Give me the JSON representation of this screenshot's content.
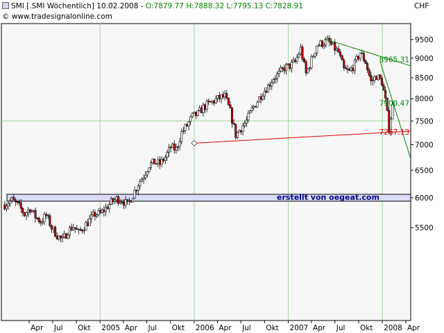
{
  "header": {
    "instrument": "SMI [.SMI Wöchentlich] 10.02.2008",
    "ohlc": "O:7879.77 H:7888.32 L:7795.13 C:7828.91",
    "source": "© www.tradesignalonline.com",
    "currency": "CHF",
    "credit": "erstellt von oegeat.com"
  },
  "colors": {
    "background": "#ffffff",
    "plot_background": "#f7f7f7",
    "grid": "#9fd49f",
    "up_candle": "#ffffff",
    "down_candle": "#cc0000",
    "trendline_green": "#008000",
    "trendline_red": "#dd0000",
    "support_zone": "#d8dcf6"
  },
  "chart_data": {
    "type": "candlestick",
    "y_scale": "log",
    "ylim": [
      4200,
      9950
    ],
    "xlim": [
      "2003-12-15",
      "2008-04-20"
    ],
    "yticks": [
      5500,
      6000,
      6500,
      7000,
      7500,
      8000,
      8500,
      9000,
      9500
    ],
    "ytick_labels": [
      "5500",
      "6000",
      "6500",
      "7000",
      "7500",
      "8000",
      "8500",
      "9000",
      "9500"
    ],
    "xticks": [
      {
        "date": "2004-04-01",
        "label": "Apr"
      },
      {
        "date": "2004-07-01",
        "label": "Jul"
      },
      {
        "date": "2004-10-01",
        "label": "Okt"
      },
      {
        "date": "2005-01-01",
        "label": "2005"
      },
      {
        "date": "2005-04-01",
        "label": "Apr"
      },
      {
        "date": "2005-07-01",
        "label": "Jul"
      },
      {
        "date": "2005-10-01",
        "label": "Okt"
      },
      {
        "date": "2006-01-01",
        "label": "2006"
      },
      {
        "date": "2006-04-01",
        "label": "Apr"
      },
      {
        "date": "2006-07-01",
        "label": "Jul"
      },
      {
        "date": "2006-10-01",
        "label": "Okt"
      },
      {
        "date": "2007-01-01",
        "label": "2007"
      },
      {
        "date": "2007-04-01",
        "label": "Apr"
      },
      {
        "date": "2007-07-01",
        "label": "Jul"
      },
      {
        "date": "2007-10-01",
        "label": "Okt"
      },
      {
        "date": "2008-01-01",
        "label": "2008"
      },
      {
        "date": "2008-04-01",
        "label": "Apr"
      }
    ],
    "grid": true,
    "vertical_gridlines": [
      "2005-01-01",
      "2006-01-01",
      "2007-01-01",
      "2008-01-01"
    ],
    "horizontal_gridlines": [
      7500
    ],
    "close_path": [
      [
        "2003-12-28",
        5880
      ],
      [
        "2004-01-25",
        5960
      ],
      [
        "2004-02-22",
        5850
      ],
      [
        "2004-03-14",
        5720
      ],
      [
        "2004-04-04",
        5820
      ],
      [
        "2004-04-25",
        5680
      ],
      [
        "2004-05-16",
        5600
      ],
      [
        "2004-06-06",
        5700
      ],
      [
        "2004-06-27",
        5500
      ],
      [
        "2004-07-18",
        5380
      ],
      [
        "2004-08-08",
        5300
      ],
      [
        "2004-08-29",
        5450
      ],
      [
        "2004-09-19",
        5520
      ],
      [
        "2004-10-10",
        5420
      ],
      [
        "2004-10-31",
        5520
      ],
      [
        "2004-11-21",
        5620
      ],
      [
        "2004-12-12",
        5720
      ],
      [
        "2005-01-02",
        5730
      ],
      [
        "2005-01-23",
        5820
      ],
      [
        "2005-02-13",
        5920
      ],
      [
        "2005-03-06",
        5980
      ],
      [
        "2005-03-27",
        5960
      ],
      [
        "2005-04-17",
        5880
      ],
      [
        "2005-05-08",
        6050
      ],
      [
        "2005-05-29",
        6250
      ],
      [
        "2005-06-19",
        6400
      ],
      [
        "2005-07-10",
        6600
      ],
      [
        "2005-07-31",
        6650
      ],
      [
        "2005-08-21",
        6620
      ],
      [
        "2005-09-11",
        6750
      ],
      [
        "2005-10-02",
        6950
      ],
      [
        "2005-10-23",
        6900
      ],
      [
        "2005-11-13",
        7250
      ],
      [
        "2005-12-04",
        7400
      ],
      [
        "2005-12-25",
        7600
      ],
      [
        "2006-01-15",
        7650
      ],
      [
        "2006-02-05",
        7800
      ],
      [
        "2006-02-26",
        7880
      ],
      [
        "2006-03-19",
        7950
      ],
      [
        "2006-04-09",
        8020
      ],
      [
        "2006-04-30",
        8050
      ],
      [
        "2006-05-21",
        7700
      ],
      [
        "2006-06-11",
        7200
      ],
      [
        "2006-07-02",
        7350
      ],
      [
        "2006-07-23",
        7500
      ],
      [
        "2006-08-13",
        7750
      ],
      [
        "2006-09-03",
        7950
      ],
      [
        "2006-09-24",
        8150
      ],
      [
        "2006-10-15",
        8300
      ],
      [
        "2006-11-05",
        8500
      ],
      [
        "2006-11-26",
        8600
      ],
      [
        "2006-12-17",
        8750
      ],
      [
        "2007-01-07",
        8800
      ],
      [
        "2007-01-28",
        8900
      ],
      [
        "2007-02-18",
        9250
      ],
      [
        "2007-03-11",
        8600
      ],
      [
        "2007-04-01",
        8950
      ],
      [
        "2007-04-22",
        9350
      ],
      [
        "2007-05-13",
        9400
      ],
      [
        "2007-06-03",
        9450
      ],
      [
        "2007-06-24",
        9300
      ],
      [
        "2007-07-15",
        9150
      ],
      [
        "2007-08-05",
        8700
      ],
      [
        "2007-08-26",
        8650
      ],
      [
        "2007-09-16",
        8850
      ],
      [
        "2007-10-07",
        9150
      ],
      [
        "2007-10-28",
        8900
      ],
      [
        "2007-11-18",
        8400
      ],
      [
        "2007-12-09",
        8550
      ],
      [
        "2007-12-30",
        8400
      ],
      [
        "2008-01-13",
        7950
      ],
      [
        "2008-01-27",
        7350
      ],
      [
        "2008-02-10",
        7829
      ]
    ],
    "trendlines": [
      {
        "color": "green",
        "points": [
          [
            "2007-05-20",
            9520
          ],
          [
            "2008-04-20",
            8800
          ]
        ],
        "label": "8965.31",
        "label_value": 8965.31
      },
      {
        "color": "green",
        "points": [
          [
            "2007-12-24",
            8900
          ],
          [
            "2008-04-20",
            6720
          ]
        ],
        "label": "7900.47",
        "label_value": 7900.47
      },
      {
        "color": "red",
        "points": [
          [
            "2006-01-01",
            7030
          ],
          [
            "2008-04-20",
            7280
          ]
        ],
        "label": "7267.13",
        "label_value": 7267.13
      }
    ],
    "support_zone": {
      "from": 5940,
      "to": 6060,
      "start": "2003-12-15",
      "end": "2008-04-20"
    }
  }
}
